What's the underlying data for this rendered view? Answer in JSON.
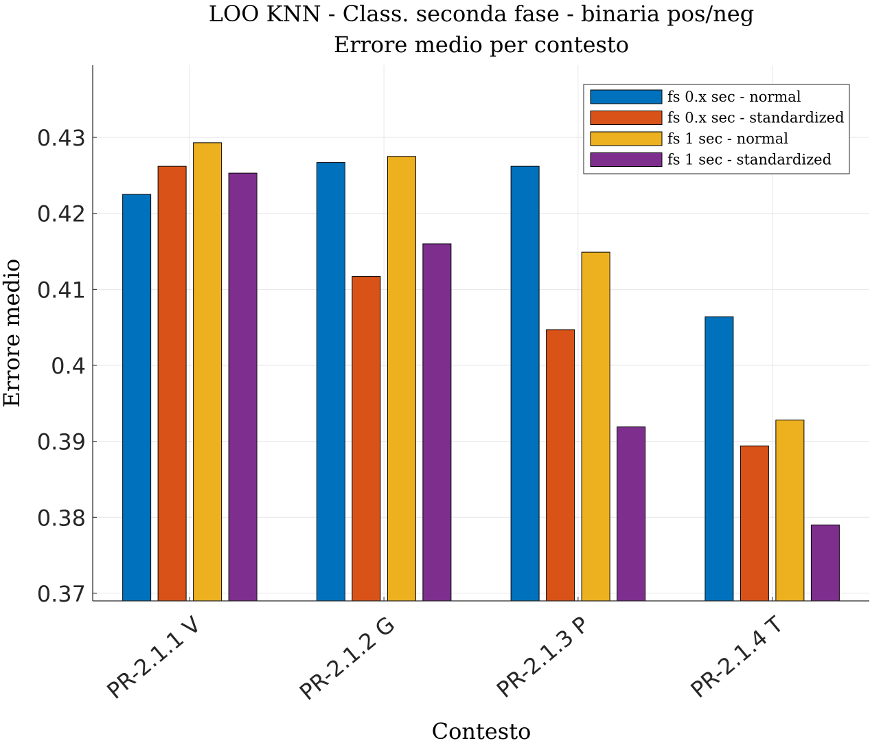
{
  "chart_data": {
    "type": "bar",
    "title": "LOO KNN - Class. seconda fase - binaria pos/neg",
    "subtitle": "Errore medio per contesto",
    "xlabel": "Contesto",
    "ylabel": "Errore medio",
    "ylim": [
      0.369,
      0.4395
    ],
    "yticks": [
      0.37,
      0.38,
      0.39,
      0.4,
      0.41,
      0.42,
      0.43
    ],
    "ytick_labels": [
      "0.37",
      "0.38",
      "0.39",
      "0.4",
      "0.41",
      "0.42",
      "0.43"
    ],
    "grid": true,
    "legend_position": "top-right",
    "categories": [
      "PR-2.1.1 V",
      "PR-2.1.2 G",
      "PR-2.1.3 P",
      "PR-2.1.4 T"
    ],
    "series": [
      {
        "name": "fs 0.x sec - normal",
        "color": "#0072BD",
        "values": [
          0.4225,
          0.4267,
          0.4262,
          0.4064
        ]
      },
      {
        "name": "fs 0.x sec - standardized",
        "color": "#D95319",
        "values": [
          0.4262,
          0.4117,
          0.4047,
          0.3894
        ]
      },
      {
        "name": "fs 1 sec - normal",
        "color": "#EDB120",
        "values": [
          0.4293,
          0.4275,
          0.4149,
          0.3928
        ]
      },
      {
        "name": "fs 1 sec - standardized",
        "color": "#7E2F8E",
        "values": [
          0.4253,
          0.416,
          0.3919,
          0.379
        ]
      }
    ]
  }
}
